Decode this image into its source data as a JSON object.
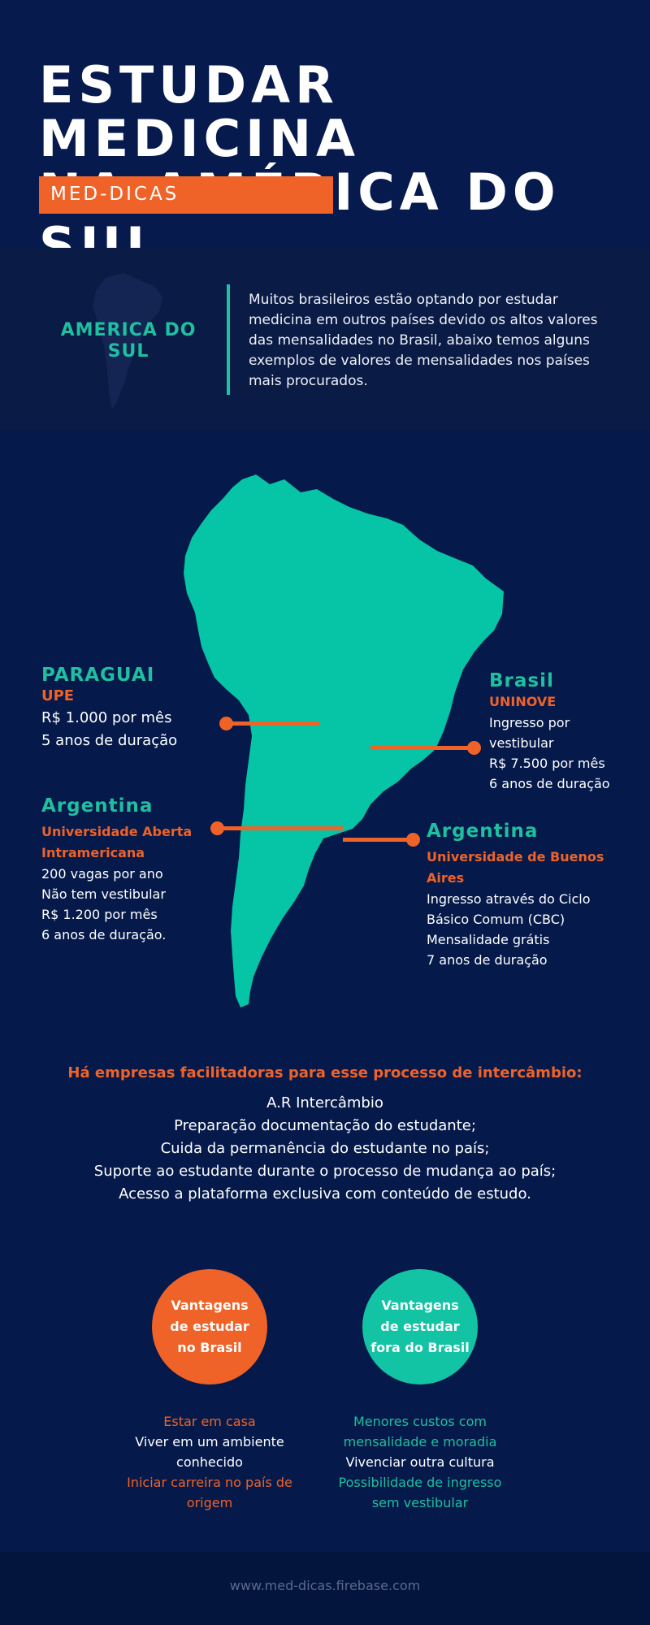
{
  "header": {
    "title_line1": "ESTUDAR MEDICINA",
    "title_line2": "NA AMÉRICA DO SUL",
    "tag": "MED-DICAS"
  },
  "intro": {
    "region_line1": "AMERICA DO",
    "region_line2": "SUL",
    "text_lines": [
      "Muitos brasileiros estão optando por estudar",
      "medicina em outros países devido os altos valores",
      "das mensalidades no Brasil, abaixo temos alguns",
      "exemplos de valores de mensalidades nos países",
      "mais procurados."
    ]
  },
  "countries": {
    "paraguai": {
      "name": "PARAGUAI",
      "university": "UPE",
      "lines": [
        "R$ 1.000 por mês",
        "5 anos de duração"
      ]
    },
    "brasil": {
      "name": "Brasil",
      "university": "UNINOVE",
      "lines": [
        "Ingresso por",
        "vestibular",
        "R$ 7.500 por mês",
        "6 anos de duração"
      ]
    },
    "argentina_left": {
      "name": "Argentina",
      "university_lines": [
        "Universidade Aberta",
        "Intramericana"
      ],
      "lines": [
        "200 vagas por ano",
        "Não tem vestibular",
        "R$ 1.200 por mês",
        "6 anos de duração."
      ]
    },
    "argentina_right": {
      "name": "Argentina",
      "university_lines": [
        "Universidade de Buenos",
        "Aires"
      ],
      "lines": [
        "Ingresso através do Ciclo",
        "Básico Comum (CBC)",
        "Mensalidade grátis",
        "7 anos de duração"
      ]
    }
  },
  "facilitators": {
    "title": "Há empresas facilitadoras para esse processo de intercâmbio:",
    "lines": [
      "A.R Intercâmbio",
      "Preparação documentação do estudante;",
      "Cuida da permanência do estudante no país;",
      "Suporte ao estudante durante o processo de mudança ao país;",
      "Acesso a plataforma exclusiva com conteúdo de estudo."
    ]
  },
  "advantages": {
    "brasil": {
      "circle_lines": [
        "Vantagens",
        "de estudar",
        "no Brasil"
      ],
      "items": [
        {
          "lines": [
            "Estar em casa"
          ],
          "color": "orange"
        },
        {
          "lines": [
            "Viver em um ambiente",
            "conhecido"
          ],
          "color": "white"
        },
        {
          "lines": [
            "Iniciar carreira no país de",
            "origem"
          ],
          "color": "orange"
        }
      ]
    },
    "fora": {
      "circle_lines": [
        "Vantagens",
        "de estudar",
        "fora do Brasil"
      ],
      "items": [
        {
          "lines": [
            "Menores custos com",
            "mensalidade e moradia"
          ],
          "color": "teal"
        },
        {
          "lines": [
            "Vivenciar outra cultura"
          ],
          "color": "white"
        },
        {
          "lines": [
            "Possibilidade de ingresso",
            "sem vestibular"
          ],
          "color": "teal"
        }
      ]
    }
  },
  "footer": {
    "url": "www.med-dicas.firebase.com"
  },
  "colors": {
    "background": "#051a4a",
    "accent_orange": "#ef6228",
    "accent_teal": "#1fbf9f",
    "map": "#06c4a6"
  }
}
